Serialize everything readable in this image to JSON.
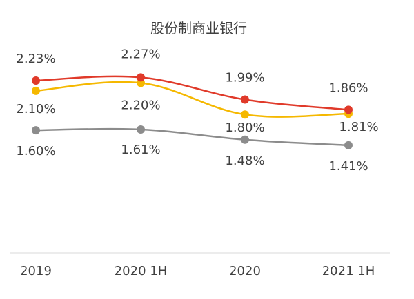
{
  "chart_data": {
    "type": "line",
    "title": "股份制商业银行",
    "categories": [
      "2019",
      "2020 1H",
      "2020",
      "2021 1H"
    ],
    "series": [
      {
        "values": [
          2.23,
          2.27,
          1.99,
          1.86
        ],
        "labels": [
          "2.23%",
          "2.27%",
          "1.99%",
          "1.86%"
        ],
        "color": "#e03a2a"
      },
      {
        "values": [
          2.1,
          2.2,
          1.8,
          1.81
        ],
        "labels": [
          "2.10%",
          "2.20%",
          "1.80%",
          "1.81%"
        ],
        "color": "#f5b800"
      },
      {
        "values": [
          1.6,
          1.61,
          1.48,
          1.41
        ],
        "labels": [
          "1.60%",
          "1.61%",
          "1.48%",
          "1.41%"
        ],
        "color": "#8c8c8c"
      }
    ],
    "grid": false,
    "legend": false
  }
}
